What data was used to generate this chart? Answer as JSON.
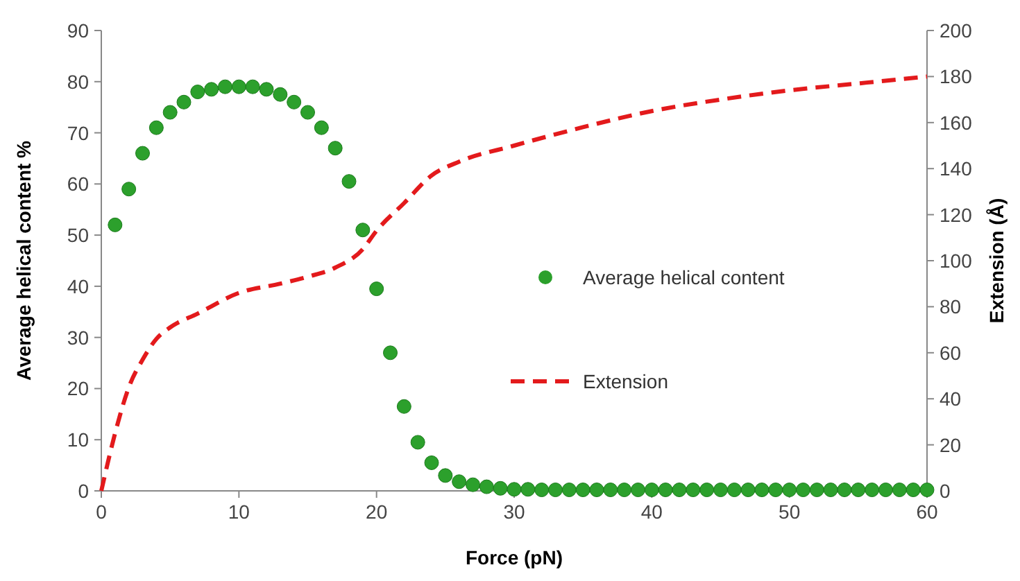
{
  "chart_data": {
    "type": "scatter",
    "xlabel": "Force (pN)",
    "ylabel": "Average helical content %",
    "y2label": "Extension (Å)",
    "xlim": [
      0,
      60
    ],
    "xticks": [
      0,
      10,
      20,
      30,
      40,
      50,
      60
    ],
    "ylim": [
      0,
      90
    ],
    "yticks": [
      0,
      10,
      20,
      30,
      40,
      50,
      60,
      70,
      80,
      90
    ],
    "y2lim": [
      0,
      200
    ],
    "y2ticks": [
      0,
      20,
      40,
      60,
      80,
      100,
      120,
      140,
      160,
      180,
      200
    ],
    "grid": false,
    "legend": "right",
    "series": [
      {
        "name": "Average helical content",
        "marker": "circle",
        "color": "#2ca02c",
        "x": [
          1,
          2,
          3,
          4,
          5,
          6,
          7,
          8,
          9,
          10,
          11,
          12,
          13,
          14,
          15,
          16,
          17,
          18,
          19,
          20,
          21,
          22,
          23,
          24,
          25,
          26,
          27,
          28,
          29,
          30,
          31,
          32,
          33,
          34,
          35,
          36,
          37,
          38,
          39,
          40,
          41,
          42,
          43,
          44,
          45,
          46,
          47,
          48,
          49,
          50,
          51,
          52,
          53,
          54,
          55,
          56,
          57,
          58,
          59,
          60
        ],
        "values": [
          52,
          59,
          66,
          71,
          74,
          76,
          78,
          78.5,
          79,
          79,
          79,
          78.5,
          77.5,
          76,
          74,
          71,
          67,
          60.5,
          51,
          39.5,
          27,
          16.5,
          9.5,
          5.5,
          3,
          1.8,
          1.2,
          0.8,
          0.5,
          0.3,
          0.3,
          0.2,
          0.2,
          0.2,
          0.2,
          0.2,
          0.2,
          0.2,
          0.2,
          0.2,
          0.2,
          0.2,
          0.2,
          0.2,
          0.2,
          0.2,
          0.2,
          0.2,
          0.2,
          0.2,
          0.2,
          0.2,
          0.2,
          0.2,
          0.2,
          0.2,
          0.2,
          0.2,
          0.2,
          0.2
        ]
      },
      {
        "name": "Extension",
        "type": "line",
        "axis": "y2",
        "line_style": "dashed",
        "color": "#e31a1c",
        "x": [
          0,
          1,
          2,
          3,
          4,
          5,
          7,
          10,
          13,
          15,
          17,
          19,
          20,
          22,
          24,
          26,
          30,
          35,
          40,
          45,
          50,
          55,
          60
        ],
        "values": [
          0,
          25,
          45,
          57,
          66,
          71,
          77,
          86,
          90,
          93,
          97,
          105,
          113,
          125,
          137,
          143,
          150,
          158,
          165,
          170,
          174,
          177,
          180
        ]
      }
    ]
  }
}
